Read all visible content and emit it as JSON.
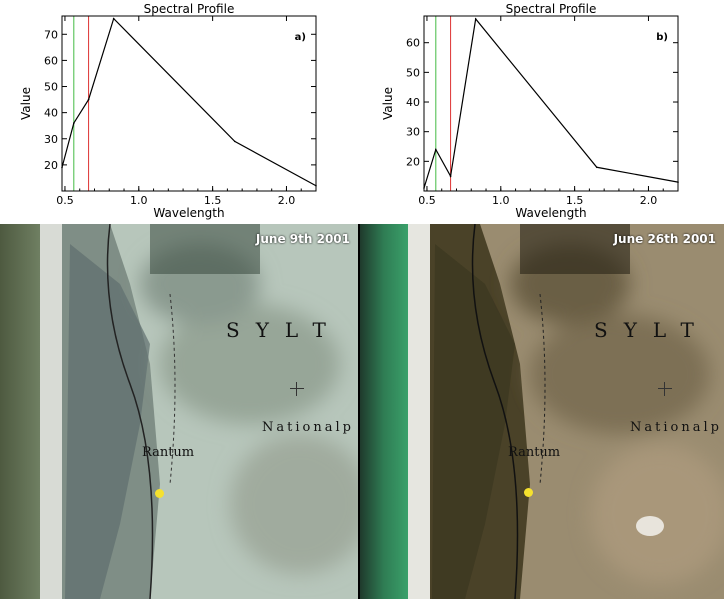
{
  "chart_data": [
    {
      "type": "line",
      "panel_label": "a)",
      "title": "Spectral Profile",
      "xlabel": "Wavelength",
      "ylabel": "Value",
      "xlim": [
        0.48,
        2.2
      ],
      "ylim": [
        10,
        77
      ],
      "xticks": [
        0.5,
        1.0,
        1.5,
        2.0
      ],
      "xtick_labels": [
        "0.5",
        "1.0",
        "1.5",
        "2.0"
      ],
      "yticks": [
        20,
        30,
        40,
        50,
        60,
        70
      ],
      "ytick_labels": [
        "20",
        "30",
        "40",
        "50",
        "60",
        "70"
      ],
      "x": [
        0.48,
        0.56,
        0.66,
        0.83,
        1.65,
        2.2
      ],
      "y": [
        19,
        36,
        45,
        76,
        29,
        12
      ],
      "series_color": "#000000",
      "vertical_lines": [
        {
          "x": 0.56,
          "color": "#44bb44"
        },
        {
          "x": 0.66,
          "color": "#dd3333"
        }
      ]
    },
    {
      "type": "line",
      "panel_label": "b)",
      "title": "Spectral Profile",
      "xlabel": "Wavelength",
      "ylabel": "Value",
      "xlim": [
        0.48,
        2.2
      ],
      "ylim": [
        10,
        69
      ],
      "xticks": [
        0.5,
        1.0,
        1.5,
        2.0
      ],
      "xtick_labels": [
        "0.5",
        "1.0",
        "1.5",
        "2.0"
      ],
      "yticks": [
        20,
        30,
        40,
        50,
        60
      ],
      "ytick_labels": [
        "20",
        "30",
        "40",
        "50",
        "60"
      ],
      "x": [
        0.48,
        0.56,
        0.66,
        0.83,
        1.65,
        2.2
      ],
      "y": [
        11,
        24,
        15,
        68,
        18,
        13
      ],
      "series_color": "#000000",
      "vertical_lines": [
        {
          "x": 0.56,
          "color": "#44bb44"
        },
        {
          "x": 0.66,
          "color": "#dd3333"
        }
      ]
    }
  ],
  "maps": [
    {
      "date": "June 9th 2001",
      "labels": {
        "sylt": "SYLT",
        "national": "Nationalp",
        "rantum": "Rantum"
      },
      "marker_color": "#f5e12e"
    },
    {
      "date": "June 26th 2001",
      "labels": {
        "sylt": "SYLT",
        "national": "Nationalp",
        "rantum": "Rantum"
      },
      "marker_color": "#f5e12e"
    }
  ]
}
